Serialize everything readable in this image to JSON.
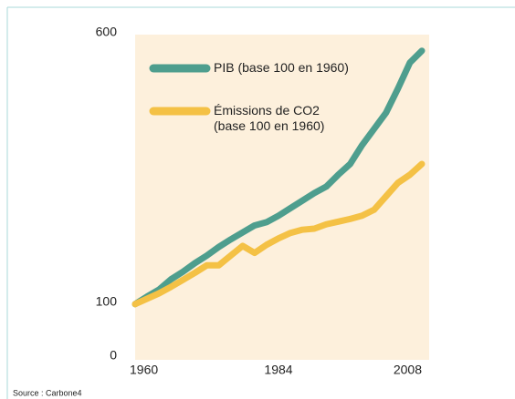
{
  "chart_data": {
    "type": "line",
    "x": [
      1960,
      1962,
      1964,
      1966,
      1968,
      1970,
      1972,
      1974,
      1976,
      1978,
      1980,
      1982,
      1984,
      1986,
      1988,
      1990,
      1992,
      1994,
      1996,
      1998,
      2000,
      2002,
      2004,
      2006,
      2008
    ],
    "series": [
      {
        "name": "PIB (base 100 en 1960)",
        "color": "#4e9e8e",
        "values": [
          100,
          114,
          127,
          146,
          160,
          176,
          190,
          206,
          220,
          233,
          246,
          252,
          264,
          278,
          292,
          306,
          318,
          340,
          360,
          395,
          425,
          455,
          500,
          548,
          570
        ]
      },
      {
        "name": "Émissions de CO2\n(base 100 en 1960)",
        "color": "#f4c145",
        "values": [
          100,
          110,
          120,
          132,
          145,
          158,
          172,
          172,
          190,
          208,
          195,
          210,
          222,
          232,
          238,
          240,
          248,
          253,
          258,
          264,
          275,
          300,
          325,
          340,
          360
        ]
      }
    ],
    "xlim": [
      1960,
      2008
    ],
    "xticks": [
      1960,
      1984,
      2008
    ],
    "ylim": [
      0,
      600
    ],
    "yticks": [
      0,
      100,
      600
    ],
    "grid": false,
    "legend": "top-left",
    "source": "Source : Carbone4"
  }
}
